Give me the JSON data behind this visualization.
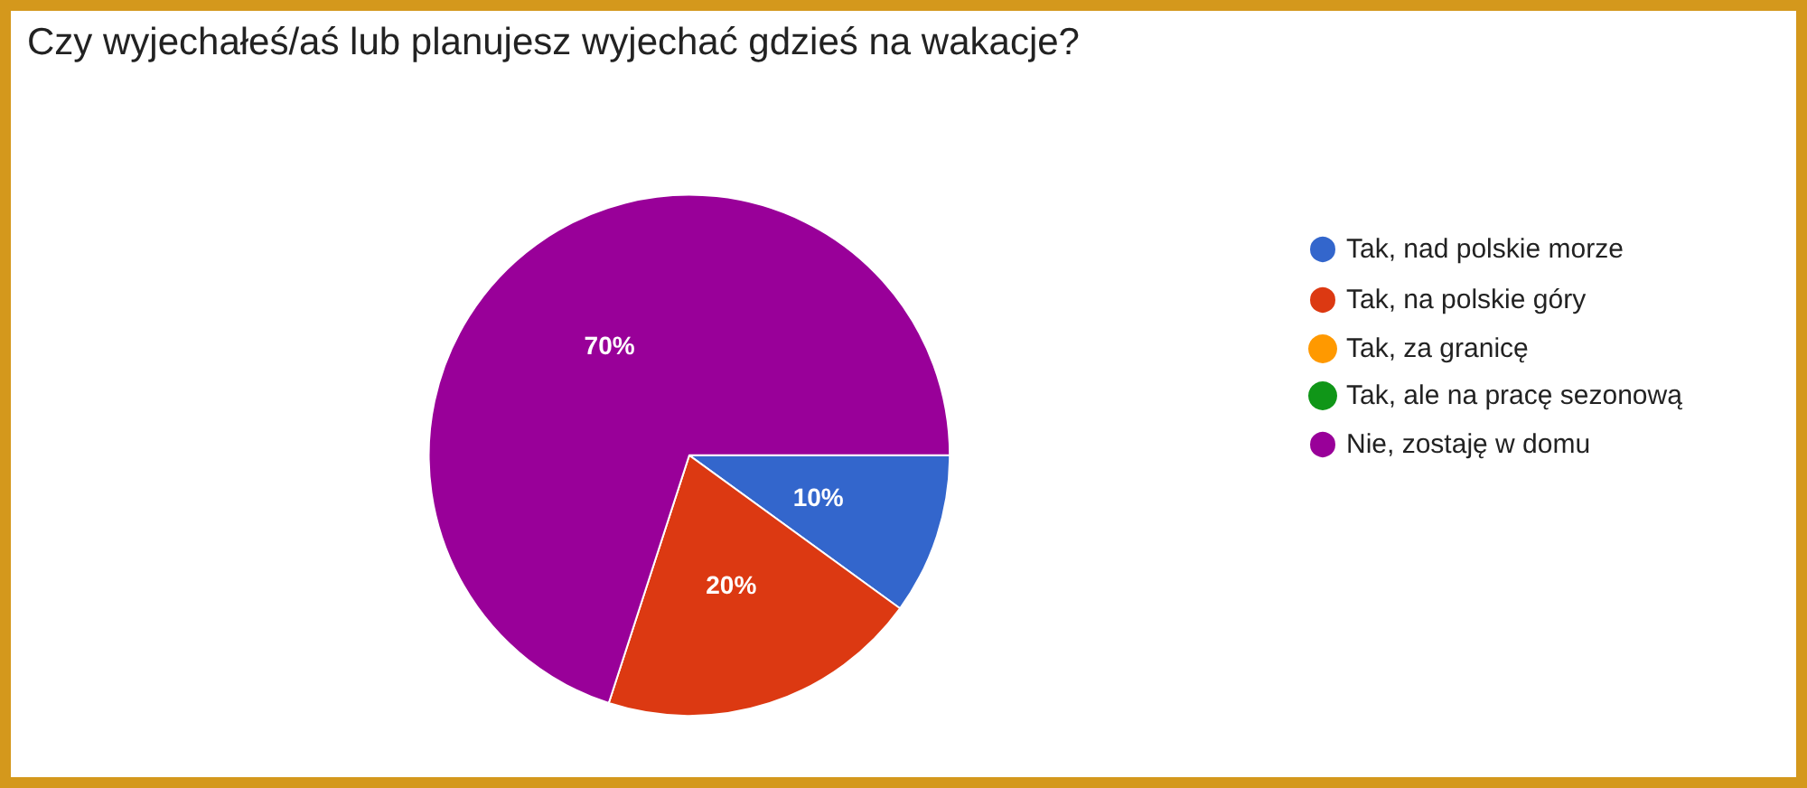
{
  "chart_data": {
    "type": "pie",
    "title": "Czy wyjechałeś/aś lub planujesz wyjechać gdzieś na wakacje?",
    "categories": [
      "Tak, nad polskie morze",
      "Tak, na polskie góry",
      "Tak, za granicę",
      "Tak, ale na pracę sezonową",
      "Nie, zostaję w domu"
    ],
    "values": [
      10,
      20,
      0,
      0,
      70
    ],
    "colors": [
      "#3366cc",
      "#dc3912",
      "#ff9900",
      "#109618",
      "#990099"
    ],
    "value_labels": [
      "10%",
      "20%",
      null,
      null,
      "70%"
    ],
    "legend": "right"
  }
}
